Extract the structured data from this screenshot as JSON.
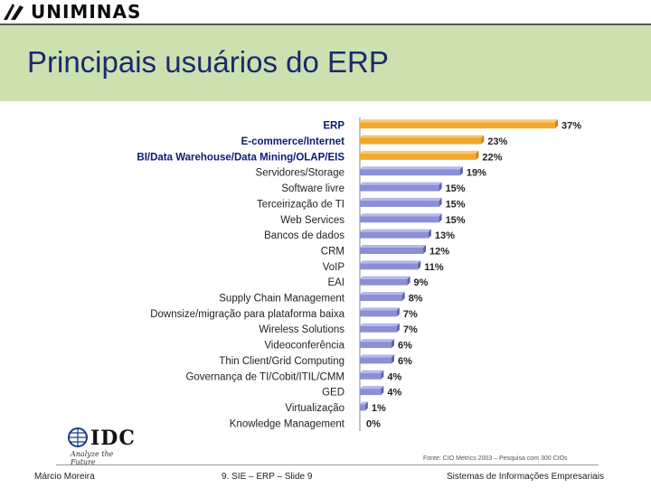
{
  "header": {
    "logo_text": "UNIMINAS"
  },
  "title": "Principais usuários do ERP",
  "chart_data": {
    "type": "bar",
    "orientation": "horizontal",
    "categories": [
      "ERP",
      "E-commerce/Internet",
      "BI/Data Warehouse/Data Mining/OLAP/EIS",
      "Servidores/Storage",
      "Software livre",
      "Terceirização de TI",
      "Web Services",
      "Bancos de dados",
      "CRM",
      "VoIP",
      "EAI",
      "Supply Chain Management",
      "Downsize/migração para plataforma baixa",
      "Wireless Solutions",
      "Videoconferência",
      "Thin Client/Grid Computing",
      "Governança de TI/Cobit/ITIL/CMM",
      "GED",
      "Virtualização",
      "Knowledge Management"
    ],
    "values": [
      37,
      23,
      22,
      19,
      15,
      15,
      15,
      13,
      12,
      11,
      9,
      8,
      7,
      7,
      6,
      6,
      4,
      4,
      1,
      0
    ],
    "value_labels": [
      "37%",
      "23%",
      "22%",
      "19%",
      "15%",
      "15%",
      "15%",
      "13%",
      "12%",
      "11%",
      "9%",
      "8%",
      "7%",
      "7%",
      "6%",
      "6%",
      "4%",
      "4%",
      "1%",
      "0%"
    ],
    "highlighted": [
      true,
      true,
      true,
      false,
      false,
      false,
      false,
      false,
      false,
      false,
      false,
      false,
      false,
      false,
      false,
      false,
      false,
      false,
      false,
      false
    ],
    "colors": {
      "highlight": "#f0a830",
      "normal": "#8c8fd6",
      "label_highlight": "#0c1a78",
      "label_normal": "#222222"
    },
    "xlim": [
      0,
      40
    ],
    "title": "",
    "xlabel": "",
    "ylabel": ""
  },
  "idc": {
    "name": "IDC",
    "tagline": "Analyze the Future"
  },
  "source": "Fonte: CIO Metrics 2003 – Pesquisa com 300 CIOs",
  "footer": {
    "author": "Márcio Moreira",
    "slide": "9. SIE – ERP – Slide 9",
    "course": "Sistemas de Informações Empresariais"
  }
}
